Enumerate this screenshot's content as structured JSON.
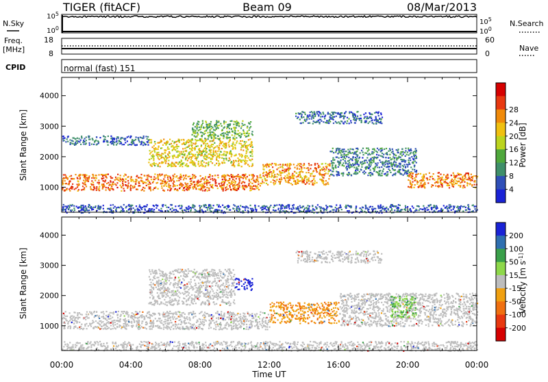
{
  "header": {
    "station": "TIGER (fitACF)",
    "beam": "Beam 09",
    "date": "08/Mar/2013"
  },
  "noise_panel": {
    "left_label": "N.Sky",
    "right_label": "N.Search",
    "left_ticks": [
      "10^5",
      "10^0"
    ],
    "right_ticks": [
      "10^5",
      "10^0"
    ]
  },
  "freq_panel": {
    "left_label_line1": "Freq.",
    "left_label_line2": "[MHz]",
    "right_label": "Nave",
    "left_ticks": [
      "18",
      "8"
    ],
    "right_ticks": [
      "60",
      "0"
    ]
  },
  "cpid_panel": {
    "label": "CPID",
    "value": "normal (fast) 151"
  },
  "chart_data": [
    {
      "type": "heatmap",
      "name": "power",
      "ylabel": "Slant Range [km]",
      "xlabel": "Time UT",
      "xlim": [
        "00:00",
        "24:00"
      ],
      "ylim": [
        180,
        4600
      ],
      "y_ticks": [
        "1000",
        "2000",
        "3000",
        "4000"
      ],
      "x_ticks": [
        "00:00",
        "04:00",
        "08:00",
        "12:00",
        "16:00",
        "20:00",
        "00:00"
      ],
      "colorbar": {
        "label": "Power [dB]",
        "ticks": [
          "4",
          "8",
          "12",
          "16",
          "20",
          "24",
          "28"
        ],
        "colors": [
          "#1a23d6",
          "#2f4fb8",
          "#3f8f6a",
          "#4fa83c",
          "#bcd41e",
          "#f0c010",
          "#f08a0a",
          "#e83810",
          "#d60000"
        ]
      },
      "bands": [
        {
          "t_start": 0.0,
          "t_end": 11.5,
          "range_start": 900,
          "range_end": 1450,
          "power_db": 24
        },
        {
          "t_start": 11.5,
          "t_end": 15.5,
          "range_start": 1100,
          "range_end": 1800,
          "power_db": 22
        },
        {
          "t_start": 5.0,
          "t_end": 11.0,
          "range_start": 1700,
          "range_end": 2600,
          "power_db": 18
        },
        {
          "t_start": 7.5,
          "t_end": 11.0,
          "range_start": 2600,
          "range_end": 3200,
          "power_db": 12
        },
        {
          "t_start": 15.5,
          "t_end": 20.5,
          "range_start": 1400,
          "range_end": 2300,
          "power_db": 8
        },
        {
          "t_start": 20.0,
          "t_end": 24.0,
          "range_start": 1000,
          "range_end": 1500,
          "power_db": 24
        },
        {
          "t_start": 13.5,
          "t_end": 18.5,
          "range_start": 3100,
          "range_end": 3500,
          "power_db": 6
        },
        {
          "t_start": 0.0,
          "t_end": 5.0,
          "range_start": 2400,
          "range_end": 2700,
          "power_db": 6
        },
        {
          "t_start": 0.0,
          "t_end": 24.0,
          "range_start": 180,
          "range_end": 450,
          "power_db": 5
        }
      ]
    },
    {
      "type": "heatmap",
      "name": "velocity",
      "ylabel": "Slant Range [km]",
      "xlabel": "Time UT",
      "xlim": [
        "00:00",
        "24:00"
      ],
      "ylim": [
        180,
        4600
      ],
      "y_ticks": [
        "1000",
        "2000",
        "3000",
        "4000"
      ],
      "x_ticks": [
        "00:00",
        "04:00",
        "08:00",
        "12:00",
        "16:00",
        "20:00",
        "00:00"
      ],
      "colorbar": {
        "label": "Velocity [m s^-1]",
        "ticks": [
          "200",
          "100",
          "50",
          "15",
          "-15",
          "-50",
          "-100",
          "-200"
        ],
        "colors": [
          "#1a23d6",
          "#2f6fb0",
          "#3aa04a",
          "#8ed84a",
          "#bdbdbd",
          "#f0a010",
          "#f07010",
          "#e83810",
          "#d60000"
        ]
      },
      "bands": [
        {
          "t_start": 0.0,
          "t_end": 12.0,
          "range_start": 900,
          "range_end": 1500,
          "velocity": 0
        },
        {
          "t_start": 12.0,
          "t_end": 16.0,
          "range_start": 1100,
          "range_end": 1800,
          "velocity": -60
        },
        {
          "t_start": 16.0,
          "t_end": 24.0,
          "range_start": 1000,
          "range_end": 2100,
          "velocity": 0
        },
        {
          "t_start": 5.0,
          "t_end": 10.0,
          "range_start": 1700,
          "range_end": 2900,
          "velocity": 0
        },
        {
          "t_start": 10.0,
          "t_end": 11.0,
          "range_start": 2200,
          "range_end": 2600,
          "velocity": 200
        },
        {
          "t_start": 19.0,
          "t_end": 20.5,
          "range_start": 1300,
          "range_end": 2000,
          "velocity": 60
        },
        {
          "t_start": 13.5,
          "t_end": 18.5,
          "range_start": 3100,
          "range_end": 3500,
          "velocity": 0
        },
        {
          "t_start": 0.0,
          "t_end": 24.0,
          "range_start": 180,
          "range_end": 500,
          "velocity": 0
        }
      ]
    }
  ]
}
